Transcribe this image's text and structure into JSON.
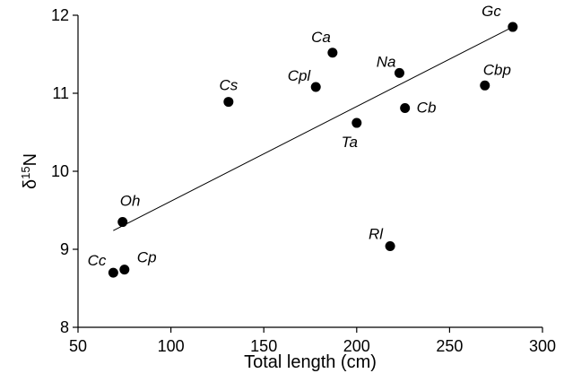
{
  "chart_data": {
    "type": "scatter",
    "xlabel": "Total length (cm)",
    "ylabel_symbol": "δ",
    "ylabel_sup": "15",
    "ylabel_element": "N",
    "xlim": [
      50,
      300
    ],
    "ylim": [
      8,
      12
    ],
    "xticks": [
      50,
      100,
      150,
      200,
      250,
      300
    ],
    "yticks": [
      8,
      9,
      10,
      11,
      12
    ],
    "grid": false,
    "points": [
      {
        "label": "Gc",
        "x": 284,
        "y": 11.85
      },
      {
        "label": "Ca",
        "x": 187,
        "y": 11.52
      },
      {
        "label": "Na",
        "x": 223,
        "y": 11.26
      },
      {
        "label": "Cbp",
        "x": 269,
        "y": 11.1
      },
      {
        "label": "Cpl",
        "x": 178,
        "y": 11.08
      },
      {
        "label": "Cs",
        "x": 131,
        "y": 10.89
      },
      {
        "label": "Cb",
        "x": 226,
        "y": 10.81
      },
      {
        "label": "Ta",
        "x": 200,
        "y": 10.62
      },
      {
        "label": "Oh",
        "x": 74,
        "y": 9.35
      },
      {
        "label": "Rl",
        "x": 218,
        "y": 9.04
      },
      {
        "label": "Cp",
        "x": 75,
        "y": 8.74
      },
      {
        "label": "Cc",
        "x": 69,
        "y": 8.7
      }
    ],
    "trendline": {
      "x1": 69,
      "y1": 9.24,
      "x2": 284,
      "y2": 11.85
    }
  }
}
